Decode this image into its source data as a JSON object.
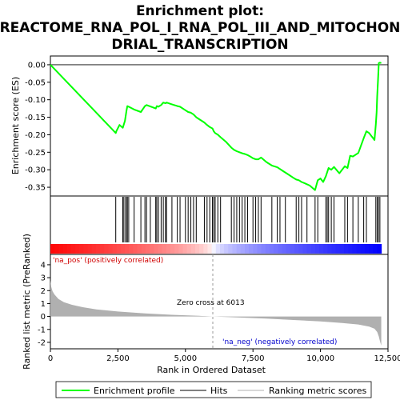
{
  "chart_data": {
    "type": "line",
    "title_lines": [
      "Enrichment plot:",
      "REACTOME_RNA_POL_I_RNA_POL_III_AND_MITOCHON",
      "DRIAL_TRANSCRIPTION"
    ],
    "top_panel": {
      "ylabel": "Enrichment score (ES)",
      "ylim": [
        -0.375,
        0.025
      ],
      "yticks": [
        "0.00",
        "-0.05",
        "-0.10",
        "-0.15",
        "-0.20",
        "-0.25",
        "-0.30",
        "-0.35"
      ],
      "ytick_values": [
        0.0,
        -0.05,
        -0.1,
        -0.15,
        -0.2,
        -0.25,
        -0.3,
        -0.35
      ],
      "series": [
        {
          "name": "Enrichment profile",
          "color": "#00ff00",
          "x": [
            0,
            2420,
            2440,
            2560,
            2680,
            2700,
            2760,
            2820,
            2850,
            2900,
            3100,
            3350,
            3500,
            3560,
            3900,
            3940,
            4000,
            4100,
            4180,
            4260,
            4300,
            4500,
            4700,
            4800,
            5000,
            5100,
            5200,
            5300,
            5400,
            5700,
            5800,
            5900,
            6000,
            6050,
            6100,
            6200,
            6300,
            6500,
            6700,
            6800,
            6900,
            7000,
            7100,
            7200,
            7300,
            7400,
            7500,
            7600,
            7700,
            7800,
            8000,
            8200,
            8400,
            8600,
            8800,
            9000,
            9100,
            9200,
            9300,
            9400,
            9600,
            9800,
            9900,
            10000,
            10100,
            10200,
            10300,
            10400,
            10500,
            10700,
            10900,
            11000,
            11100,
            11200,
            11400,
            11600,
            11700,
            11800,
            12000,
            12050,
            12080,
            12100,
            12130,
            12160,
            12200,
            12250
          ],
          "y": [
            0.0,
            -0.195,
            -0.19,
            -0.172,
            -0.18,
            -0.175,
            -0.16,
            -0.13,
            -0.118,
            -0.12,
            -0.128,
            -0.135,
            -0.118,
            -0.115,
            -0.125,
            -0.118,
            -0.12,
            -0.115,
            -0.108,
            -0.11,
            -0.108,
            -0.113,
            -0.118,
            -0.12,
            -0.13,
            -0.135,
            -0.137,
            -0.142,
            -0.15,
            -0.165,
            -0.172,
            -0.178,
            -0.182,
            -0.19,
            -0.195,
            -0.2,
            -0.207,
            -0.22,
            -0.237,
            -0.243,
            -0.247,
            -0.25,
            -0.253,
            -0.255,
            -0.258,
            -0.262,
            -0.267,
            -0.27,
            -0.27,
            -0.265,
            -0.278,
            -0.288,
            -0.293,
            -0.303,
            -0.313,
            -0.323,
            -0.328,
            -0.33,
            -0.335,
            -0.338,
            -0.345,
            -0.358,
            -0.33,
            -0.325,
            -0.335,
            -0.318,
            -0.295,
            -0.3,
            -0.292,
            -0.31,
            -0.29,
            -0.295,
            -0.26,
            -0.262,
            -0.252,
            -0.21,
            -0.19,
            -0.195,
            -0.215,
            -0.17,
            -0.135,
            -0.09,
            -0.045,
            0.005,
            0.006,
            0.005
          ]
        }
      ]
    },
    "hits": {
      "x": [
        2420,
        2680,
        2700,
        2760,
        2820,
        2850,
        2900,
        3100,
        3350,
        3500,
        3560,
        3700,
        3900,
        3940,
        4000,
        4100,
        4180,
        4260,
        4300,
        4500,
        4700,
        4800,
        5000,
        5100,
        5200,
        5300,
        5400,
        5700,
        5800,
        5900,
        6000,
        6050,
        6100,
        6200,
        6300,
        6700,
        6800,
        6900,
        7000,
        7100,
        7200,
        7300,
        7500,
        7600,
        7700,
        7800,
        8200,
        8400,
        8500,
        8700,
        9100,
        9200,
        9300,
        9500,
        9800,
        9900,
        10200,
        10250,
        10300,
        10400,
        10500,
        10900,
        11000,
        11200,
        11400,
        11600,
        11700,
        12050,
        12100,
        12150,
        12200
      ]
    },
    "bottom_panel": {
      "ylabel": "Ranked list metric (PreRanked)",
      "ylim": [
        -2.5,
        4.8
      ],
      "yticks": [
        "4",
        "3",
        "2",
        "1",
        "0",
        "-1",
        "-2"
      ],
      "ytick_values": [
        4,
        3,
        2,
        1,
        0,
        -1,
        -2
      ],
      "metric_x": [
        0,
        30,
        80,
        150,
        300,
        500,
        800,
        1200,
        1700,
        2500,
        3500,
        4500,
        5500,
        6013,
        7000,
        8000,
        9000,
        10000,
        10800,
        11400,
        11800,
        12000,
        12100,
        12160,
        12200,
        12250
      ],
      "metric_y": [
        2.8,
        2.3,
        1.95,
        1.7,
        1.35,
        1.1,
        0.9,
        0.72,
        0.55,
        0.38,
        0.24,
        0.13,
        0.05,
        0.0,
        -0.08,
        -0.17,
        -0.27,
        -0.38,
        -0.5,
        -0.62,
        -0.78,
        -0.95,
        -1.2,
        -1.55,
        -1.9,
        -2.25
      ],
      "fill_color": "#b0b0b0",
      "zero_cross_x": 6013,
      "zero_cross_label": "Zero cross at 6013",
      "pos_label": "'na_pos' (positively correlated)",
      "neg_label": "'na_neg' (negatively correlated)"
    },
    "x_axis": {
      "xlabel": "Rank in Ordered Dataset",
      "xlim": [
        0,
        12500
      ],
      "xticks": [
        "0",
        "2,500",
        "5,000",
        "7,500",
        "10,000",
        "12,500"
      ],
      "xtick_values": [
        0,
        2500,
        5000,
        7500,
        10000,
        12500
      ],
      "n_genes": 12250
    },
    "legend": {
      "placement": "bottom",
      "items": [
        {
          "label": "Enrichment profile",
          "color": "#00ff00"
        },
        {
          "label": "Hits",
          "color": "#000000"
        },
        {
          "label": "Ranking metric scores",
          "color": "#b0b0b0"
        }
      ]
    }
  }
}
